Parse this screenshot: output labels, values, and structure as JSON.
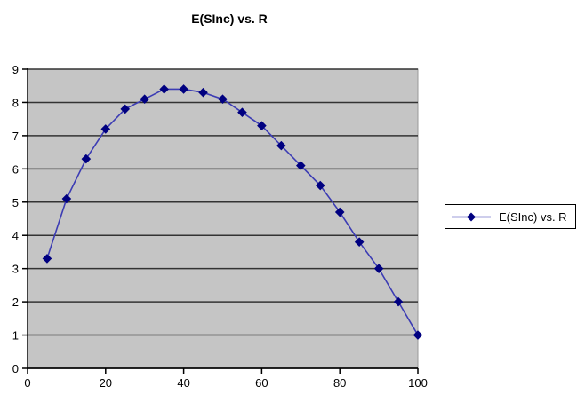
{
  "title": "E(SInc) vs. R",
  "legend": {
    "label": "E(SInc) vs. R",
    "position": "right"
  },
  "colors": {
    "chart_bg": "#ffffff",
    "plot_bg": "#c5c5c5",
    "plot_border": "#999999",
    "gridline": "#333333",
    "axis": "#000000",
    "series_line": "#3c3cb4",
    "series_marker": "#000080",
    "legend_bg": "#ffffff",
    "legend_border": "#000000",
    "text": "#000000"
  },
  "chart_data": {
    "type": "line",
    "title": "E(SInc) vs. R",
    "xlabel": "",
    "ylabel": "",
    "x": [
      5,
      10,
      15,
      20,
      25,
      30,
      35,
      40,
      45,
      50,
      55,
      60,
      65,
      70,
      75,
      80,
      85,
      90,
      95,
      100
    ],
    "series": [
      {
        "name": "E(SInc) vs. R",
        "values": [
          3.3,
          5.1,
          6.3,
          7.2,
          7.8,
          8.1,
          8.4,
          8.4,
          8.3,
          8.1,
          7.7,
          7.3,
          6.7,
          6.1,
          5.5,
          4.7,
          3.8,
          3.0,
          2.0,
          1.0
        ]
      }
    ],
    "xlim": [
      0,
      100
    ],
    "ylim": [
      0,
      9
    ],
    "xticks": [
      0,
      20,
      40,
      60,
      80,
      100
    ],
    "yticks": [
      0,
      1,
      2,
      3,
      4,
      5,
      6,
      7,
      8,
      9
    ],
    "grid": "horizontal",
    "marker": "diamond",
    "legend_position": "right"
  }
}
